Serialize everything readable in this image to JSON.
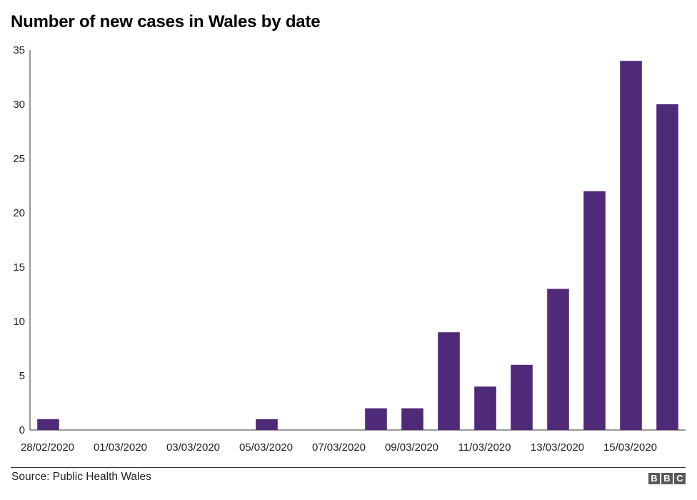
{
  "chart_data": {
    "type": "bar",
    "title": "Number of new cases in Wales by date",
    "xlabel": "",
    "ylabel": "",
    "categories": [
      "28/02/2020",
      "29/02/2020",
      "01/03/2020",
      "02/03/2020",
      "03/03/2020",
      "04/03/2020",
      "05/03/2020",
      "06/03/2020",
      "07/03/2020",
      "08/03/2020",
      "09/03/2020",
      "10/03/2020",
      "11/03/2020",
      "12/03/2020",
      "13/03/2020",
      "14/03/2020",
      "15/03/2020",
      "16/03/2020"
    ],
    "values": [
      1,
      0,
      0,
      0,
      0,
      0,
      1,
      0,
      0,
      2,
      2,
      9,
      4,
      6,
      13,
      22,
      34,
      30
    ],
    "x_tick_labels": [
      "28/02/2020",
      "01/03/2020",
      "03/03/2020",
      "05/03/2020",
      "07/03/2020",
      "09/03/2020",
      "11/03/2020",
      "13/03/2020",
      "15/03/2020"
    ],
    "y_ticks": [
      0,
      5,
      10,
      15,
      20,
      25,
      30,
      35
    ],
    "ylim": [
      0,
      35
    ],
    "grid": false,
    "bar_color": "#4e2a78"
  },
  "footer": {
    "source": "Source: Public Health Wales",
    "logo_letters": [
      "B",
      "B",
      "C"
    ]
  }
}
